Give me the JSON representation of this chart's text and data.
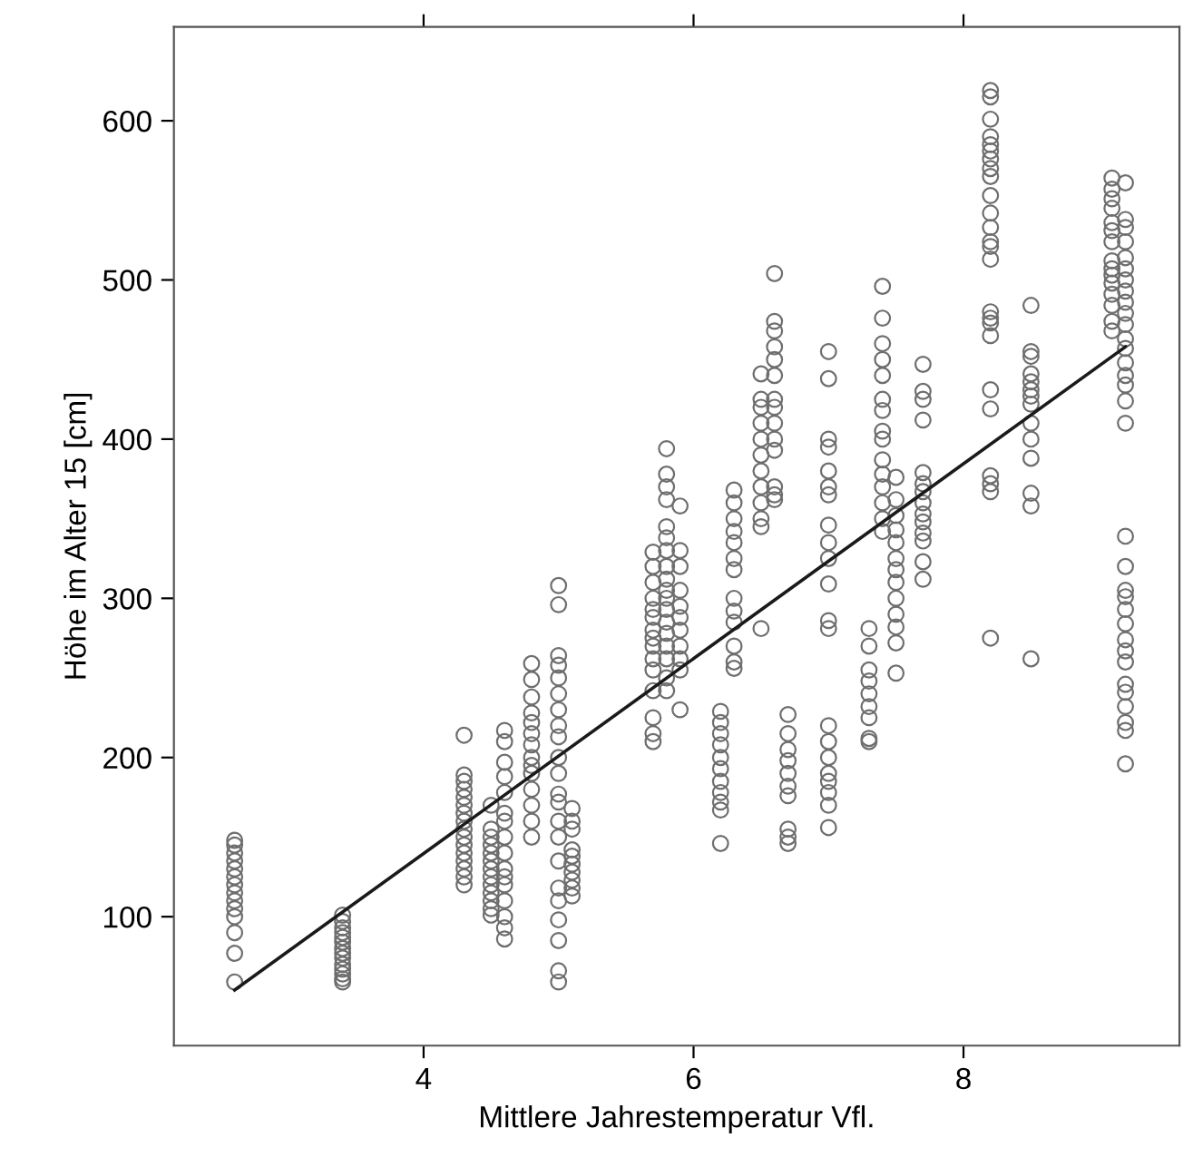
{
  "chart_data": {
    "type": "scatter",
    "xlabel": "Mittlere Jahrestemperatur Vfl.",
    "ylabel": "Höhe im Alter 15 [cm]",
    "xlim": [
      2.15,
      9.6
    ],
    "ylim": [
      19,
      659
    ],
    "xticks": [
      4,
      6,
      8
    ],
    "yticks": [
      100,
      200,
      300,
      400,
      500,
      600
    ],
    "grid": false,
    "legend": false,
    "marker": "circle",
    "series": [
      {
        "color": "#6e6e6e",
        "x": [
          2.6,
          2.6,
          2.6,
          2.6,
          2.6,
          2.6,
          2.6,
          2.6,
          2.6,
          2.6,
          2.6,
          2.6,
          2.6,
          2.6,
          3.4,
          3.4,
          3.4,
          3.4,
          3.4,
          3.4,
          3.4,
          3.4,
          3.4,
          3.4,
          3.4,
          3.4,
          3.4,
          3.4,
          4.3,
          4.3,
          4.3,
          4.3,
          4.3,
          4.3,
          4.3,
          4.3,
          4.3,
          4.3,
          4.3,
          4.3,
          4.3,
          4.3,
          4.3,
          4.3,
          4.5,
          4.5,
          4.5,
          4.5,
          4.5,
          4.5,
          4.5,
          4.5,
          4.5,
          4.5,
          4.5,
          4.5,
          4.5,
          4.6,
          4.6,
          4.6,
          4.6,
          4.6,
          4.6,
          4.6,
          4.6,
          4.6,
          4.6,
          4.6,
          4.6,
          4.6,
          4.6,
          4.6,
          4.6,
          4.8,
          4.8,
          4.8,
          4.8,
          4.8,
          4.8,
          4.8,
          4.8,
          4.8,
          4.8,
          4.8,
          4.8,
          4.8,
          4.8,
          5.0,
          5.0,
          5.0,
          5.0,
          5.0,
          5.0,
          5.0,
          5.0,
          5.0,
          5.0,
          5.0,
          5.0,
          5.0,
          5.0,
          5.0,
          5.0,
          5.0,
          5.0,
          5.0,
          5.0,
          5.0,
          5.0,
          5.1,
          5.1,
          5.1,
          5.1,
          5.1,
          5.1,
          5.1,
          5.1,
          5.1,
          5.1,
          5.7,
          5.7,
          5.7,
          5.7,
          5.7,
          5.7,
          5.7,
          5.7,
          5.7,
          5.7,
          5.7,
          5.7,
          5.7,
          5.7,
          5.7,
          5.8,
          5.8,
          5.8,
          5.8,
          5.8,
          5.8,
          5.8,
          5.8,
          5.8,
          5.8,
          5.8,
          5.8,
          5.8,
          5.8,
          5.8,
          5.8,
          5.8,
          5.8,
          5.9,
          5.9,
          5.9,
          5.9,
          5.9,
          5.9,
          5.9,
          5.9,
          5.9,
          5.9,
          5.9,
          6.2,
          6.2,
          6.2,
          6.2,
          6.2,
          6.2,
          6.2,
          6.2,
          6.2,
          6.2,
          6.2,
          6.3,
          6.3,
          6.3,
          6.3,
          6.3,
          6.3,
          6.3,
          6.3,
          6.3,
          6.3,
          6.3,
          6.3,
          6.3,
          6.5,
          6.5,
          6.5,
          6.5,
          6.5,
          6.5,
          6.5,
          6.5,
          6.5,
          6.5,
          6.5,
          6.5,
          6.6,
          6.6,
          6.6,
          6.6,
          6.6,
          6.6,
          6.6,
          6.6,
          6.6,
          6.6,
          6.6,
          6.6,
          6.6,
          6.6,
          6.7,
          6.7,
          6.7,
          6.7,
          6.7,
          6.7,
          6.7,
          6.7,
          6.7,
          6.7,
          7.0,
          7.0,
          7.0,
          7.0,
          7.0,
          7.0,
          7.0,
          7.0,
          7.0,
          7.0,
          7.0,
          7.0,
          7.0,
          7.0,
          7.0,
          7.0,
          7.0,
          7.0,
          7.0,
          7.0,
          7.0,
          7.3,
          7.3,
          7.3,
          7.3,
          7.3,
          7.3,
          7.3,
          7.3,
          7.3,
          7.4,
          7.4,
          7.4,
          7.4,
          7.4,
          7.4,
          7.4,
          7.4,
          7.4,
          7.4,
          7.4,
          7.4,
          7.4,
          7.4,
          7.4,
          7.5,
          7.5,
          7.5,
          7.5,
          7.5,
          7.5,
          7.5,
          7.5,
          7.5,
          7.5,
          7.5,
          7.5,
          7.5,
          7.7,
          7.7,
          7.7,
          7.7,
          7.7,
          7.7,
          7.7,
          7.7,
          7.7,
          7.7,
          7.7,
          7.7,
          7.7,
          7.7,
          8.2,
          8.2,
          8.2,
          8.2,
          8.2,
          8.2,
          8.2,
          8.2,
          8.2,
          8.2,
          8.2,
          8.2,
          8.2,
          8.2,
          8.2,
          8.2,
          8.2,
          8.2,
          8.2,
          8.2,
          8.2,
          8.2,
          8.2,
          8.2,
          8.2,
          8.5,
          8.5,
          8.5,
          8.5,
          8.5,
          8.5,
          8.5,
          8.5,
          8.5,
          8.5,
          8.5,
          8.5,
          8.5,
          8.5,
          9.1,
          9.1,
          9.1,
          9.1,
          9.1,
          9.1,
          9.1,
          9.1,
          9.1,
          9.1,
          9.1,
          9.1,
          9.1,
          9.1,
          9.1,
          9.2,
          9.2,
          9.2,
          9.2,
          9.2,
          9.2,
          9.2,
          9.2,
          9.2,
          9.2,
          9.2,
          9.2,
          9.2,
          9.2,
          9.2,
          9.2,
          9.2,
          9.2,
          9.2,
          9.2,
          9.2,
          9.2,
          9.2,
          9.2,
          9.2,
          9.2,
          9.2,
          9.2,
          9.2,
          9.2,
          9.2,
          9.2,
          9.2
        ],
        "values": [
          148,
          145,
          140,
          135,
          130,
          125,
          120,
          115,
          110,
          105,
          100,
          90,
          77,
          59,
          101,
          97,
          93,
          90,
          87,
          84,
          80,
          77,
          74,
          70,
          67,
          64,
          61,
          59,
          214,
          189,
          185,
          180,
          175,
          170,
          165,
          160,
          155,
          150,
          145,
          140,
          135,
          130,
          125,
          120,
          170,
          155,
          150,
          145,
          140,
          135,
          130,
          125,
          120,
          115,
          110,
          105,
          101,
          217,
          210,
          197,
          188,
          178,
          165,
          160,
          150,
          140,
          130,
          125,
          120,
          110,
          100,
          93,
          86,
          259,
          249,
          238,
          228,
          222,
          215,
          208,
          200,
          195,
          190,
          180,
          170,
          160,
          150,
          308,
          296,
          264,
          258,
          250,
          240,
          230,
          220,
          213,
          200,
          190,
          177,
          172,
          160,
          150,
          135,
          118,
          110,
          98,
          85,
          66,
          59,
          168,
          160,
          155,
          142,
          138,
          133,
          128,
          123,
          118,
          113,
          329,
          320,
          310,
          300,
          293,
          288,
          280,
          275,
          270,
          262,
          255,
          242,
          225,
          215,
          210,
          394,
          378,
          370,
          362,
          345,
          338,
          330,
          320,
          312,
          305,
          300,
          293,
          285,
          278,
          270,
          262,
          250,
          242,
          358,
          330,
          320,
          305,
          295,
          288,
          280,
          270,
          262,
          255,
          230,
          229,
          222,
          215,
          208,
          200,
          193,
          185,
          178,
          172,
          167,
          146,
          368,
          360,
          350,
          342,
          335,
          325,
          318,
          300,
          292,
          285,
          270,
          260,
          256,
          441,
          425,
          420,
          410,
          400,
          390,
          380,
          370,
          360,
          350,
          345,
          281,
          504,
          474,
          468,
          458,
          450,
          440,
          425,
          420,
          410,
          400,
          393,
          370,
          365,
          362,
          227,
          215,
          205,
          198,
          190,
          182,
          176,
          155,
          150,
          146,
          455,
          438,
          400,
          395,
          380,
          370,
          365,
          346,
          335,
          325,
          309,
          286,
          281,
          220,
          210,
          200,
          190,
          185,
          178,
          170,
          156,
          281,
          270,
          255,
          248,
          240,
          232,
          225,
          212,
          210,
          496,
          476,
          460,
          450,
          440,
          425,
          418,
          405,
          400,
          387,
          378,
          370,
          360,
          350,
          342,
          376,
          362,
          352,
          343,
          335,
          325,
          318,
          310,
          300,
          290,
          282,
          272,
          253,
          447,
          430,
          425,
          412,
          379,
          372,
          367,
          360,
          353,
          348,
          341,
          336,
          323,
          312,
          619,
          615,
          601,
          590,
          585,
          581,
          576,
          570,
          565,
          553,
          542,
          533,
          524,
          521,
          513,
          480,
          476,
          473,
          465,
          431,
          419,
          377,
          372,
          367,
          275,
          484,
          455,
          452,
          441,
          436,
          431,
          427,
          422,
          410,
          400,
          388,
          366,
          358,
          262,
          564,
          557,
          551,
          545,
          536,
          531,
          524,
          512,
          507,
          503,
          498,
          491,
          484,
          474,
          468,
          561,
          538,
          533,
          524,
          514,
          507,
          500,
          493,
          486,
          479,
          472,
          463,
          457,
          448,
          440,
          434,
          424,
          410,
          339,
          320,
          305,
          301,
          293,
          284,
          274,
          267,
          260,
          246,
          241,
          232,
          222,
          217,
          196
        ]
      },
      {
        "type": "line",
        "color": "#1a1a1a",
        "marker": "none",
        "x": [
          2.6,
          9.2
        ],
        "values": [
          54,
          458
        ]
      }
    ]
  }
}
